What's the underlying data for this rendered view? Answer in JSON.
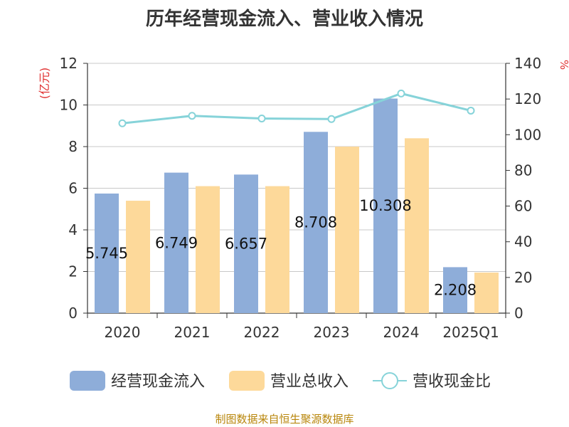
{
  "title": "历年经营现金流入、营业收入情况",
  "source_note": "制图数据来自恒生聚源数据库",
  "legend": [
    {
      "name": "经营现金流入",
      "kind": "bar",
      "color": "#8eadd9"
    },
    {
      "name": "营业总收入",
      "kind": "bar",
      "color": "#fdd99a"
    },
    {
      "name": "营收现金比",
      "kind": "line",
      "color": "#86d3d9"
    }
  ],
  "chart_data": {
    "type": "bar",
    "title": "历年经营现金流入、营业收入情况",
    "categories": [
      "2020",
      "2021",
      "2022",
      "2023",
      "2024",
      "2025Q1"
    ],
    "y_left": {
      "label": "(亿元)",
      "min": 0,
      "max": 12,
      "ticks": [
        0,
        2,
        4,
        6,
        8,
        10,
        12
      ]
    },
    "y_right": {
      "label": "%",
      "min": 0,
      "max": 140,
      "ticks": [
        0,
        20,
        40,
        60,
        80,
        100,
        120,
        140
      ]
    },
    "grid": true,
    "legend_position": "bottom",
    "series": [
      {
        "name": "经营现金流入",
        "type": "bar",
        "axis": "left",
        "color": "#8eadd9",
        "values": [
          5.745,
          6.749,
          6.657,
          8.708,
          10.308,
          2.208
        ],
        "labels": [
          "5.745",
          "6.749",
          "6.657",
          "8.708",
          "10.308",
          "2.208"
        ]
      },
      {
        "name": "营业总收入",
        "type": "bar",
        "axis": "left",
        "color": "#fdd99a",
        "values": [
          5.4,
          6.1,
          6.1,
          8.0,
          8.4,
          1.95
        ]
      },
      {
        "name": "营收现金比",
        "type": "line",
        "axis": "right",
        "color": "#86d3d9",
        "values": [
          106.4,
          110.6,
          109.1,
          108.8,
          123.1,
          113.5
        ]
      }
    ]
  }
}
